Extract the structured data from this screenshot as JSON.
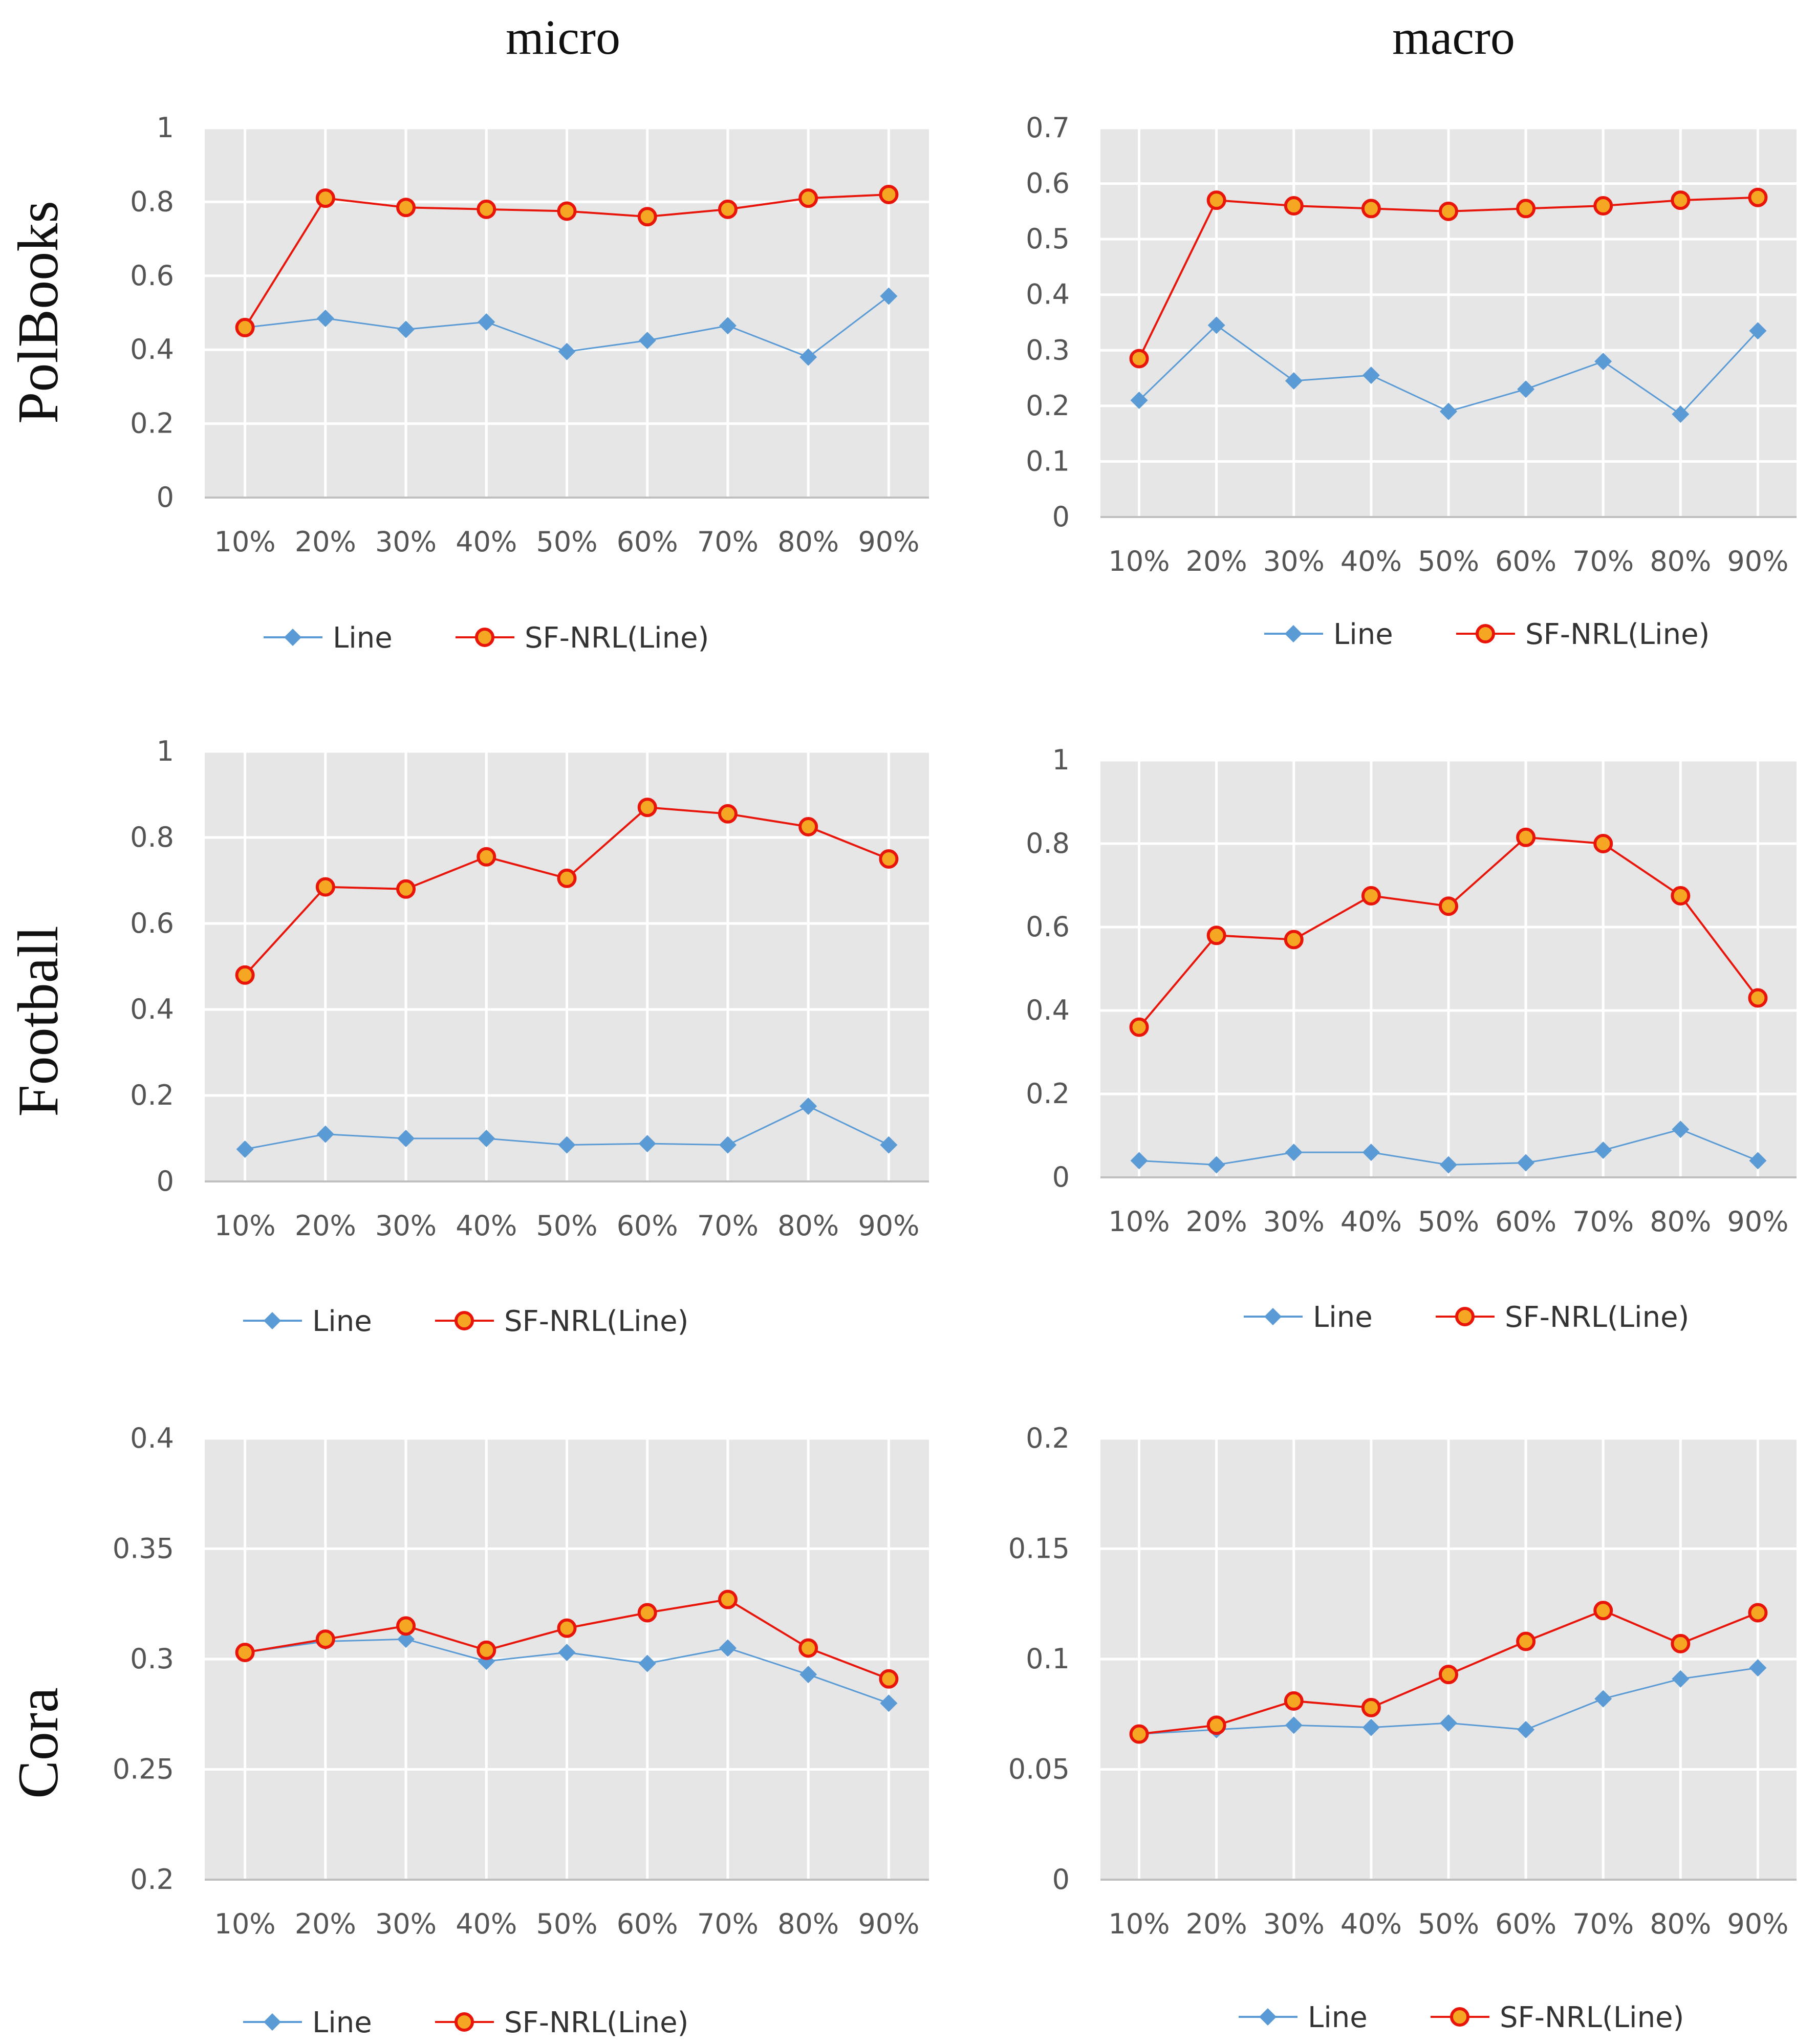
{
  "column_titles": [
    "micro",
    "macro"
  ],
  "row_titles": [
    "PolBooks",
    "Football",
    "Cora"
  ],
  "colors": {
    "line": "#5B9BD5",
    "sf_nrl_line": "#E8150B",
    "sf_nrl_marker_fill": "#F5A623",
    "plot_background": "#E6E6E6",
    "gridline": "#FFFFFF",
    "axis": "#BFBFBF"
  },
  "chart_data": [
    {
      "type": "line",
      "id": "polbooks-micro",
      "dataset": "PolBooks",
      "metric": "micro",
      "categories": [
        "10%",
        "20%",
        "30%",
        "40%",
        "50%",
        "60%",
        "70%",
        "80%",
        "90%"
      ],
      "ylim": [
        0,
        1
      ],
      "yticks": [
        0,
        0.2,
        0.4,
        0.6,
        0.8,
        1
      ],
      "ytick_labels": [
        "0",
        "0.2",
        "0.4",
        "0.6",
        "0.8",
        "1"
      ],
      "grid": true,
      "legend": "bottom",
      "series": [
        {
          "name": "Line",
          "values": [
            0.46,
            0.485,
            0.455,
            0.475,
            0.395,
            0.425,
            0.465,
            0.38,
            0.545
          ]
        },
        {
          "name": "SF-NRL(Line)",
          "values": [
            0.46,
            0.81,
            0.785,
            0.78,
            0.775,
            0.76,
            0.78,
            0.81,
            0.82
          ]
        }
      ]
    },
    {
      "type": "line",
      "id": "polbooks-macro",
      "dataset": "PolBooks",
      "metric": "macro",
      "categories": [
        "10%",
        "20%",
        "30%",
        "40%",
        "50%",
        "60%",
        "70%",
        "80%",
        "90%"
      ],
      "ylim": [
        0,
        0.7
      ],
      "yticks": [
        0,
        0.1,
        0.2,
        0.3,
        0.4,
        0.5,
        0.6,
        0.7
      ],
      "ytick_labels": [
        "0",
        "0.1",
        "0.2",
        "0.3",
        "0.4",
        "0.5",
        "0.6",
        "0.7"
      ],
      "grid": true,
      "legend": "bottom",
      "series": [
        {
          "name": "Line",
          "values": [
            0.21,
            0.345,
            0.245,
            0.255,
            0.19,
            0.23,
            0.28,
            0.185,
            0.335
          ]
        },
        {
          "name": "SF-NRL(Line)",
          "values": [
            0.285,
            0.57,
            0.56,
            0.555,
            0.55,
            0.555,
            0.56,
            0.57,
            0.575
          ]
        }
      ]
    },
    {
      "type": "line",
      "id": "football-micro",
      "dataset": "Football",
      "metric": "micro",
      "categories": [
        "10%",
        "20%",
        "30%",
        "40%",
        "50%",
        "60%",
        "70%",
        "80%",
        "90%"
      ],
      "ylim": [
        0,
        1
      ],
      "yticks": [
        0,
        0.2,
        0.4,
        0.6,
        0.8,
        1
      ],
      "ytick_labels": [
        "0",
        "0.2",
        "0.4",
        "0.6",
        "0.8",
        "1"
      ],
      "grid": true,
      "legend": "bottom",
      "series": [
        {
          "name": "Line",
          "values": [
            0.075,
            0.11,
            0.1,
            0.1,
            0.085,
            0.088,
            0.085,
            0.175,
            0.085
          ]
        },
        {
          "name": "SF-NRL(Line)",
          "values": [
            0.48,
            0.685,
            0.68,
            0.755,
            0.705,
            0.87,
            0.855,
            0.825,
            0.75
          ]
        }
      ]
    },
    {
      "type": "line",
      "id": "football-macro",
      "dataset": "Football",
      "metric": "macro",
      "categories": [
        "10%",
        "20%",
        "30%",
        "40%",
        "50%",
        "60%",
        "70%",
        "80%",
        "90%"
      ],
      "ylim": [
        0,
        1
      ],
      "yticks": [
        0,
        0.2,
        0.4,
        0.6,
        0.8,
        1
      ],
      "ytick_labels": [
        "0",
        "0.2",
        "0.4",
        "0.6",
        "0.8",
        "1"
      ],
      "grid": true,
      "legend": "bottom",
      "series": [
        {
          "name": "Line",
          "values": [
            0.04,
            0.03,
            0.06,
            0.06,
            0.03,
            0.035,
            0.065,
            0.115,
            0.04
          ]
        },
        {
          "name": "SF-NRL(Line)",
          "values": [
            0.36,
            0.58,
            0.57,
            0.675,
            0.65,
            0.815,
            0.8,
            0.675,
            0.43
          ]
        }
      ]
    },
    {
      "type": "line",
      "id": "cora-micro",
      "dataset": "Cora",
      "metric": "micro",
      "categories": [
        "10%",
        "20%",
        "30%",
        "40%",
        "50%",
        "60%",
        "70%",
        "80%",
        "90%"
      ],
      "ylim": [
        0.2,
        0.4
      ],
      "yticks": [
        0.2,
        0.25,
        0.3,
        0.35,
        0.4
      ],
      "ytick_labels": [
        "0.2",
        "0.25",
        "0.3",
        "0.35",
        "0.4"
      ],
      "grid": true,
      "legend": "bottom",
      "series": [
        {
          "name": "Line",
          "values": [
            0.303,
            0.308,
            0.309,
            0.299,
            0.303,
            0.298,
            0.305,
            0.293,
            0.28
          ]
        },
        {
          "name": "SF-NRL(Line)",
          "values": [
            0.303,
            0.309,
            0.315,
            0.304,
            0.314,
            0.321,
            0.327,
            0.305,
            0.291
          ]
        }
      ]
    },
    {
      "type": "line",
      "id": "cora-macro",
      "dataset": "Cora",
      "metric": "macro",
      "categories": [
        "10%",
        "20%",
        "30%",
        "40%",
        "50%",
        "60%",
        "70%",
        "80%",
        "90%"
      ],
      "ylim": [
        0,
        0.2
      ],
      "yticks": [
        0,
        0.05,
        0.1,
        0.15,
        0.2
      ],
      "ytick_labels": [
        "0",
        "0.05",
        "0.1",
        "0.15",
        "0.2"
      ],
      "grid": true,
      "legend": "bottom",
      "series": [
        {
          "name": "Line",
          "values": [
            0.066,
            0.068,
            0.07,
            0.069,
            0.071,
            0.068,
            0.082,
            0.091,
            0.096
          ]
        },
        {
          "name": "SF-NRL(Line)",
          "values": [
            0.066,
            0.07,
            0.081,
            0.078,
            0.093,
            0.108,
            0.122,
            0.107,
            0.121
          ]
        }
      ]
    }
  ]
}
